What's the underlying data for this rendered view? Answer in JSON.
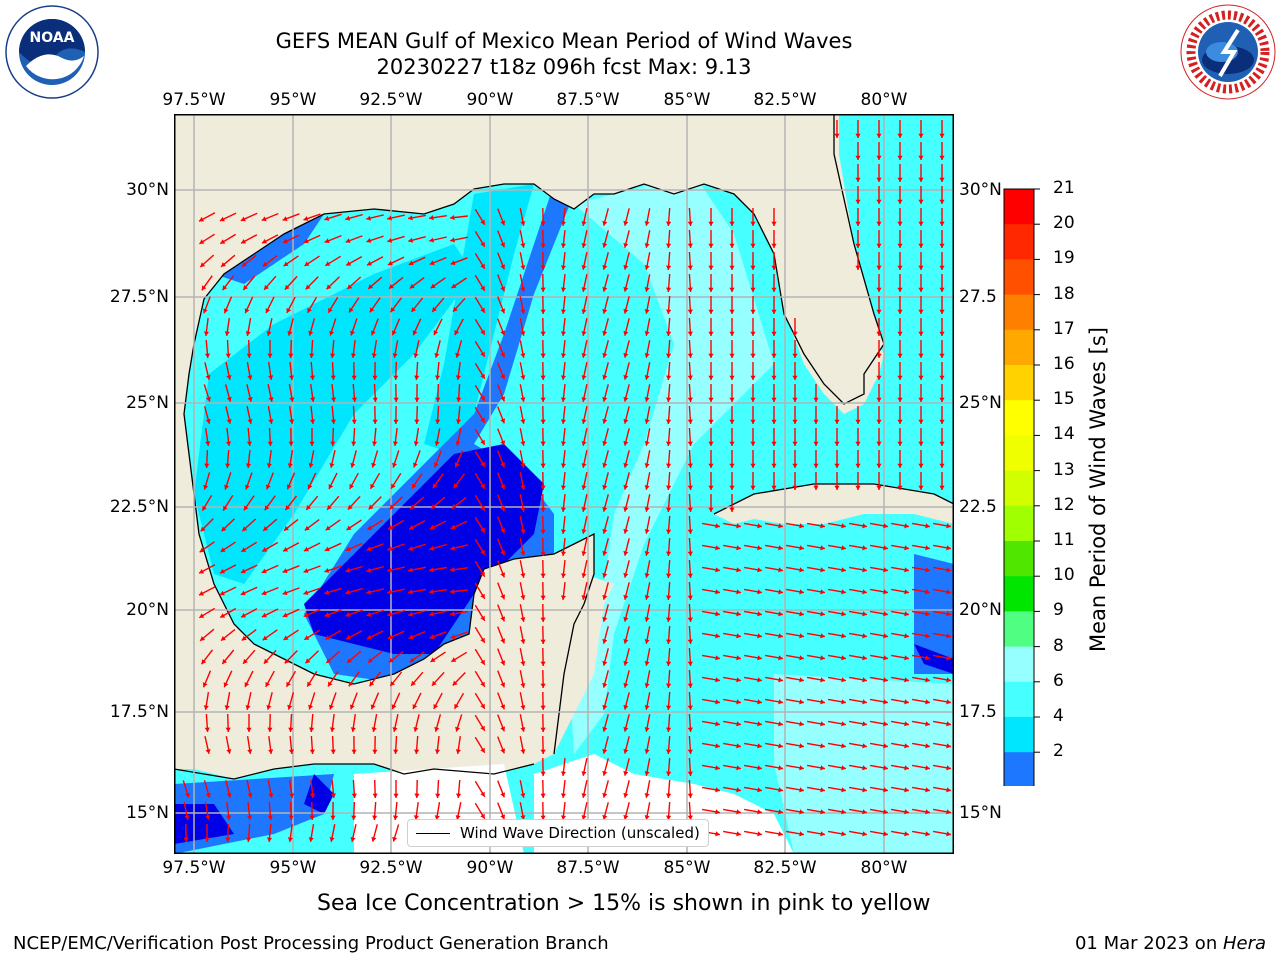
{
  "header": {
    "title_line1": "GEFS MEAN Gulf of Mexico Mean Period of Wind Waves",
    "title_line2": "20230227 t18z 096h fcst   Max: 9.13"
  },
  "logos": {
    "left": "NOAA",
    "left_ring": "NATIONAL OCEANIC AND ATMOSPHERIC ADMINISTRATION · U.S. DEPARTMENT OF COMMERCE",
    "right_ring": "NATIONAL WEATHER SERVICE"
  },
  "map": {
    "lon_labels": [
      "97.5°W",
      "95°W",
      "92.5°W",
      "90°W",
      "87.5°W",
      "85°W",
      "82.5°W",
      "80°W"
    ],
    "lat_labels_left": [
      "30°N",
      "27.5°N",
      "25°N",
      "22.5°N",
      "20°N",
      "17.5°N",
      "15°N"
    ],
    "lat_labels_right": [
      "30°N",
      "27.5",
      "25°N",
      "22.5",
      "20°N",
      "17.5",
      "15°N"
    ],
    "legend_text": "Wind Wave Direction (unscaled)",
    "colors": {
      "land": "#efecdc",
      "c2_4": "#0000e6",
      "c4_6": "#1e78ff",
      "c6_8": "#00e6ff",
      "c8_9": "#46ffff",
      "c9_10": "#96ffff",
      "arrow": "#ff0000",
      "grid": "#b4b4b4"
    }
  },
  "colorbar": {
    "title": "Mean Period of Wind Waves [s]",
    "ticks": [
      "21",
      "20",
      "19",
      "18",
      "17",
      "16",
      "15",
      "14",
      "13",
      "12",
      "11",
      "10",
      "9",
      "8",
      "6",
      "4",
      "2"
    ],
    "colors": [
      "#ff0000",
      "#ff2800",
      "#ff5000",
      "#ff8000",
      "#ffa800",
      "#ffd200",
      "#ffff00",
      "#f0ff00",
      "#d2ff00",
      "#a0ff00",
      "#50e600",
      "#00e600",
      "#50ff82",
      "#96ffff",
      "#46ffff",
      "#00e6ff",
      "#1e78ff",
      "#0000e6"
    ]
  },
  "footer": {
    "note": "Sea Ice Concentration > 15% is shown in pink to yellow",
    "left": "NCEP/EMC/Verification Post Processing Product Generation Branch",
    "right_prefix": "01 Mar 2023 on ",
    "right_machine": "Hera"
  }
}
